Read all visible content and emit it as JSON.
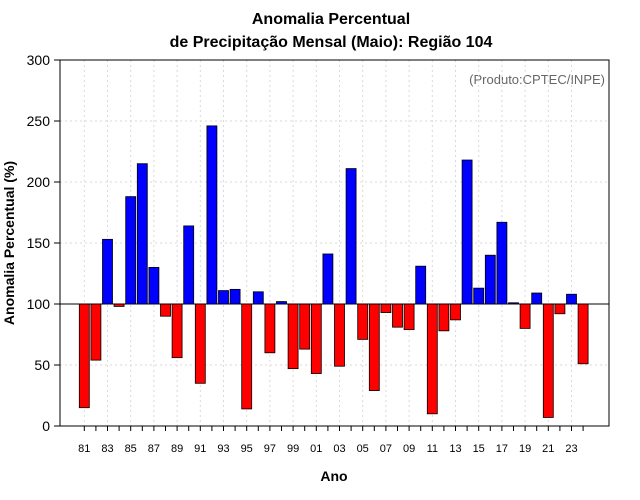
{
  "chart_data": {
    "type": "bar",
    "title_line1": "Anomalia Percentual",
    "title_line2": "de Precipitação Mensal (Maio): Região 104",
    "xlabel": "Ano",
    "ylabel": "Anomalia Percentual (%)",
    "credit": "(Produto:CPTEC/INPE)",
    "ylim": [
      0,
      300
    ],
    "yticks": [
      0,
      50,
      100,
      150,
      200,
      250,
      300
    ],
    "baseline": 100,
    "grid": true,
    "colors": {
      "above": "#0000ff",
      "below": "#ff0000",
      "outline": "#000000",
      "grid": "#d9d9d9"
    },
    "categories": [
      "81",
      "82",
      "83",
      "84",
      "85",
      "86",
      "87",
      "88",
      "89",
      "90",
      "91",
      "92",
      "93",
      "94",
      "95",
      "96",
      "97",
      "98",
      "99",
      "00",
      "01",
      "02",
      "03",
      "04",
      "05",
      "06",
      "07",
      "08",
      "09",
      "10",
      "11",
      "12",
      "13",
      "14",
      "15",
      "16",
      "17",
      "18",
      "19",
      "20",
      "21",
      "22",
      "23",
      "24"
    ],
    "xtick_labels": [
      "81",
      "83",
      "85",
      "87",
      "89",
      "91",
      "93",
      "95",
      "97",
      "99",
      "01",
      "03",
      "05",
      "07",
      "09",
      "11",
      "13",
      "15",
      "17",
      "19",
      "21",
      "23"
    ],
    "values": [
      15,
      54,
      153,
      98,
      188,
      215,
      130,
      90,
      56,
      164,
      35,
      246,
      111,
      112,
      14,
      110,
      60,
      102,
      47,
      63,
      43,
      141,
      49,
      211,
      71,
      29,
      93,
      81,
      79,
      131,
      10,
      78,
      87,
      218,
      113,
      140,
      167,
      101,
      80,
      109,
      7,
      92,
      108,
      51
    ]
  }
}
